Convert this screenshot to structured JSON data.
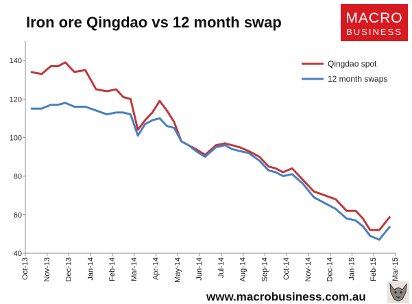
{
  "title": "Iron ore Qingdao vs 12 month swap",
  "logo": {
    "line1": "MACRO",
    "line2": "BUSINESS"
  },
  "footer_url": "www.macrobusiness.com.au",
  "colors": {
    "qingdao": "#c0393b",
    "swaps": "#4a7fc1",
    "logo_bg": "#d71920"
  },
  "chart_data": {
    "type": "line",
    "title": "Iron ore Qingdao vs 12 month swap",
    "xlabel": "",
    "ylabel": "",
    "x_tick_labels": [
      "Oct-13",
      "Nov-13",
      "Dec-13",
      "Jan-14",
      "Feb-14",
      "Mar-14",
      "Apr-14",
      "May-14",
      "Jun-14",
      "Jul-14",
      "Aug-14",
      "Sep-14",
      "Oct-14",
      "Nov-14",
      "Dec-14",
      "Jan-15",
      "Feb-15",
      "Mar-15"
    ],
    "xlim": [
      "Oct-13",
      "Mar-15"
    ],
    "ylim": [
      40,
      150
    ],
    "y_ticks": [
      40,
      60,
      80,
      100,
      120,
      140
    ],
    "grid": false,
    "legend_position": "top-right",
    "series": [
      {
        "name": "Qingdao spot",
        "color": "#c0393b",
        "x": [
          "Oct-13",
          "Oct-13",
          "Nov-13",
          "Nov-13",
          "Nov-13",
          "Dec-13",
          "Dec-13",
          "Jan-14",
          "Jan-14",
          "Feb-14",
          "Feb-14",
          "Feb-14",
          "Mar-14",
          "Mar-14",
          "Mar-14",
          "Apr-14",
          "Apr-14",
          "Apr-14",
          "May-14",
          "May-14",
          "May-14",
          "Jun-14",
          "Jun-14",
          "Jul-14",
          "Jul-14",
          "Jul-14",
          "Aug-14",
          "Aug-14",
          "Sep-14",
          "Sep-14",
          "Sep-14",
          "Oct-14",
          "Oct-14",
          "Nov-14",
          "Nov-14",
          "Dec-14",
          "Dec-14",
          "Jan-15",
          "Jan-15",
          "Jan-15",
          "Feb-15",
          "Feb-15"
        ],
        "y": [
          134,
          133,
          137,
          137,
          139,
          134,
          135,
          125,
          124,
          125,
          121,
          120,
          104,
          109,
          113,
          119,
          114,
          108,
          98,
          96,
          94,
          91,
          96,
          97,
          96,
          95,
          93,
          90,
          85,
          84,
          82,
          84,
          78,
          72,
          70,
          68,
          62,
          62,
          58,
          52,
          52,
          59
        ]
      },
      {
        "name": "12 month swaps",
        "color": "#4a7fc1",
        "x": [
          "Oct-13",
          "Oct-13",
          "Nov-13",
          "Nov-13",
          "Nov-13",
          "Dec-13",
          "Dec-13",
          "Jan-14",
          "Jan-14",
          "Feb-14",
          "Feb-14",
          "Feb-14",
          "Mar-14",
          "Mar-14",
          "Mar-14",
          "Apr-14",
          "Apr-14",
          "Apr-14",
          "May-14",
          "May-14",
          "May-14",
          "Jun-14",
          "Jun-14",
          "Jul-14",
          "Jul-14",
          "Jul-14",
          "Aug-14",
          "Aug-14",
          "Sep-14",
          "Sep-14",
          "Sep-14",
          "Oct-14",
          "Oct-14",
          "Nov-14",
          "Nov-14",
          "Dec-14",
          "Dec-14",
          "Jan-15",
          "Jan-15",
          "Jan-15",
          "Feb-15",
          "Feb-15"
        ],
        "y": [
          115,
          115,
          117,
          117,
          118,
          116,
          116,
          114,
          112,
          113,
          113,
          112,
          101,
          107,
          109,
          110,
          106,
          105,
          98,
          96,
          93,
          90,
          95,
          96,
          94,
          93,
          92,
          88,
          83,
          82,
          80,
          81,
          76,
          69,
          66,
          63,
          58,
          57,
          54,
          49,
          47,
          54
        ]
      }
    ]
  }
}
